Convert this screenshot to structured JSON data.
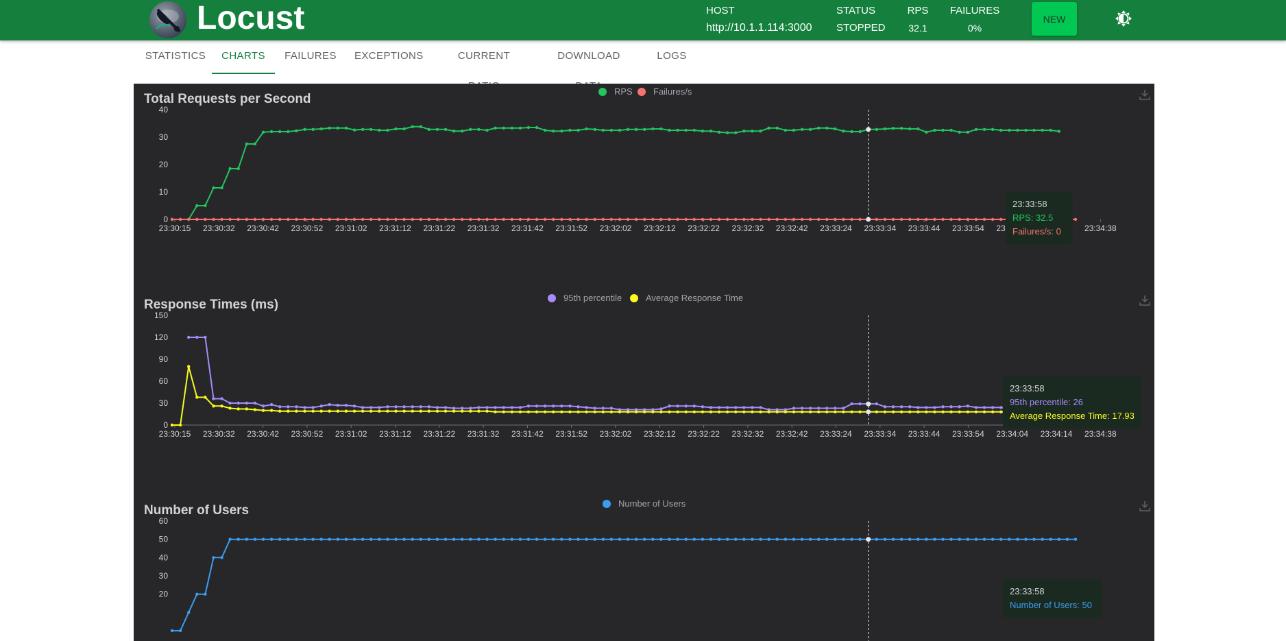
{
  "header": {
    "logo_text": "Locust",
    "host_label": "HOST",
    "host_value": "http://10.1.1.114:3000",
    "status_label": "STATUS",
    "status_value": "STOPPED",
    "rps_label": "RPS",
    "rps_value": "32.1",
    "failures_label": "FAILURES",
    "failures_value": "0%",
    "new_button": "NEW",
    "theme_icon": "brightness-icon"
  },
  "tabs": [
    {
      "label": "STATISTICS",
      "active": false
    },
    {
      "label": "CHARTS",
      "active": true
    },
    {
      "label": "FAILURES",
      "active": false
    },
    {
      "label": "EXCEPTIONS",
      "active": false
    },
    {
      "label": "CURRENT RATIO",
      "active": false
    },
    {
      "label": "DOWNLOAD DATA",
      "active": false
    },
    {
      "label": "LOGS",
      "active": false
    }
  ],
  "colors": {
    "header_bg": "#15803d",
    "panel_bg": "#27272a",
    "rps": "#22c55e",
    "failures": "#f87171",
    "p95": "#a78bfa",
    "avg": "#fafa1e",
    "users": "#3b9cf0"
  },
  "chart_data": [
    {
      "type": "line",
      "title": "Total Requests per Second",
      "x_tick_labels": [
        "23:30:15",
        "23:30:32",
        "23:30:42",
        "23:30:52",
        "23:31:02",
        "23:31:12",
        "23:31:22",
        "23:31:32",
        "23:31:42",
        "23:31:52",
        "23:32:02",
        "23:32:12",
        "23:32:22",
        "23:32:32",
        "23:32:42",
        "23:33:24",
        "23:33:34",
        "23:33:44",
        "23:33:54",
        "23:34:04",
        "23:34:14",
        "23:34:38"
      ],
      "ylim": [
        0,
        40
      ],
      "y_ticks": [
        0,
        10,
        20,
        30,
        40
      ],
      "legend_position": "top-center",
      "series": [
        {
          "name": "RPS",
          "color": "#22c55e",
          "values": [
            0,
            0,
            0,
            5,
            5,
            11.5,
            11.5,
            18.5,
            18.5,
            27.5,
            27.5,
            31.8,
            32,
            32,
            32,
            32.3,
            32.8,
            32.8,
            33,
            33.3,
            33.3,
            33.3,
            32.6,
            32.8,
            32.8,
            32.5,
            32.5,
            33,
            33,
            33.8,
            33.8,
            32.8,
            32.8,
            32.8,
            32.2,
            32.2,
            32.8,
            32.8,
            32.5,
            33.3,
            33.3,
            33.3,
            33.3,
            33.5,
            33.5,
            32.5,
            32.2,
            32.2,
            32.5,
            32.5,
            33,
            32.8,
            32.5,
            32.5,
            32.5,
            32.8,
            32.8,
            32.8,
            33,
            33,
            32.5,
            32.5,
            32.5,
            32.5,
            32.2,
            32.2,
            31.8,
            31.6,
            31.6,
            32.2,
            32.2,
            32.2,
            33.3,
            33.3,
            32.5,
            32.5,
            32.8,
            32.8,
            33.3,
            33.3,
            33,
            32.2,
            32,
            32,
            32.8,
            32.8,
            33,
            33.2,
            33.2,
            33,
            33,
            31.8,
            32.5,
            32.5,
            32.5,
            31.8,
            31.8,
            32.8,
            32.8,
            32.8,
            32.5,
            32.5,
            32.5,
            32.5,
            32.5,
            32.5,
            32.5,
            32.1
          ]
        },
        {
          "name": "Failures/s",
          "color": "#f87171",
          "values": "zeros"
        }
      ],
      "tooltip": {
        "time": "23:33:58",
        "lines": [
          "RPS: 32.5",
          "Failures/s: 0"
        ]
      }
    },
    {
      "type": "line",
      "title": "Response Times (ms)",
      "x_tick_labels": [
        "23:30:15",
        "23:30:32",
        "23:30:42",
        "23:30:52",
        "23:31:02",
        "23:31:12",
        "23:31:22",
        "23:31:32",
        "23:31:42",
        "23:31:52",
        "23:32:02",
        "23:32:12",
        "23:32:22",
        "23:32:32",
        "23:32:42",
        "23:33:24",
        "23:33:34",
        "23:33:44",
        "23:33:54",
        "23:34:04",
        "23:34:14",
        "23:34:38"
      ],
      "ylim": [
        0,
        150
      ],
      "y_ticks": [
        0,
        30,
        60,
        90,
        120,
        150
      ],
      "legend_position": "top-center",
      "series": [
        {
          "name": "95th percentile",
          "color": "#a78bfa",
          "start_index": 2,
          "values": [
            120,
            120,
            120,
            36,
            36,
            30,
            30,
            30,
            30,
            26,
            28,
            25,
            25,
            25,
            24,
            24,
            26,
            28,
            27,
            27,
            26,
            24,
            24,
            24,
            25,
            25,
            25,
            25,
            25,
            25,
            24,
            24,
            23,
            23,
            23,
            24,
            24,
            24,
            24,
            24,
            24,
            26,
            26,
            26,
            26,
            26,
            26,
            25,
            24,
            23,
            23,
            23,
            21,
            21,
            21,
            21,
            21,
            22,
            26,
            26,
            26,
            26,
            25,
            24,
            24,
            24,
            24,
            24,
            24,
            24,
            21,
            21,
            21,
            23,
            23,
            23,
            23,
            23,
            23,
            23,
            29,
            29,
            29,
            29,
            25,
            25,
            25,
            25,
            24,
            24,
            24,
            25,
            25,
            25,
            26,
            24,
            24,
            24,
            24,
            23,
            23,
            23,
            23,
            23,
            23,
            24,
            23,
            20,
            23
          ]
        },
        {
          "name": "Average Response Time",
          "color": "#fafa1e",
          "values": [
            0,
            0,
            80,
            38,
            38,
            26,
            26,
            23,
            22,
            22,
            21,
            20,
            20,
            19,
            19,
            19,
            19,
            19,
            19,
            19,
            19,
            19,
            19,
            19,
            19,
            19,
            19,
            19,
            19,
            19,
            19,
            19,
            19,
            19,
            19,
            19,
            19,
            19,
            19,
            18,
            18,
            18,
            18,
            18,
            18,
            18,
            18,
            18,
            18,
            18,
            18,
            18,
            18,
            18,
            18,
            18,
            18,
            18,
            18,
            18,
            18,
            18,
            18,
            18,
            18,
            18,
            18,
            18,
            18,
            18,
            18,
            18,
            18,
            18,
            18,
            18,
            18,
            18,
            18,
            18,
            18,
            18,
            18,
            18,
            18,
            18,
            18,
            18,
            18,
            18,
            18,
            18,
            18,
            18,
            18,
            18,
            18,
            18,
            18,
            18,
            18,
            18,
            18,
            18,
            18,
            18,
            18,
            18,
            17.93
          ]
        }
      ],
      "tooltip": {
        "time": "23:33:58",
        "lines": [
          "95th percentile: 26",
          "Average Response Time: 17.93"
        ]
      }
    },
    {
      "type": "line",
      "title": "Number of Users",
      "ylim": [
        0,
        60
      ],
      "y_ticks": [
        20,
        30,
        40,
        50,
        60
      ],
      "legend_position": "top-center",
      "series": [
        {
          "name": "Number of Users",
          "color": "#3b9cf0",
          "values": [
            0,
            0,
            10,
            20,
            20,
            40,
            40,
            50,
            50,
            50,
            50,
            50,
            50,
            50,
            50,
            50,
            50,
            50,
            50,
            50,
            50,
            50,
            50,
            50,
            50,
            50,
            50,
            50,
            50,
            50,
            50,
            50,
            50,
            50,
            50,
            50,
            50,
            50,
            50,
            50,
            50,
            50,
            50,
            50,
            50,
            50,
            50,
            50,
            50,
            50,
            50,
            50,
            50,
            50,
            50,
            50,
            50,
            50,
            50,
            50,
            50,
            50,
            50,
            50,
            50,
            50,
            50,
            50,
            50,
            50,
            50,
            50,
            50,
            50,
            50,
            50,
            50,
            50,
            50,
            50,
            50,
            50,
            50,
            50,
            50,
            50,
            50,
            50,
            50,
            50,
            50,
            50,
            50,
            50,
            50,
            50,
            50,
            50,
            50,
            50,
            50,
            50,
            50,
            50,
            50,
            50,
            50,
            50,
            50,
            50
          ]
        }
      ],
      "tooltip": {
        "time": "23:33:58",
        "lines": [
          "Number of Users: 50"
        ]
      }
    }
  ]
}
